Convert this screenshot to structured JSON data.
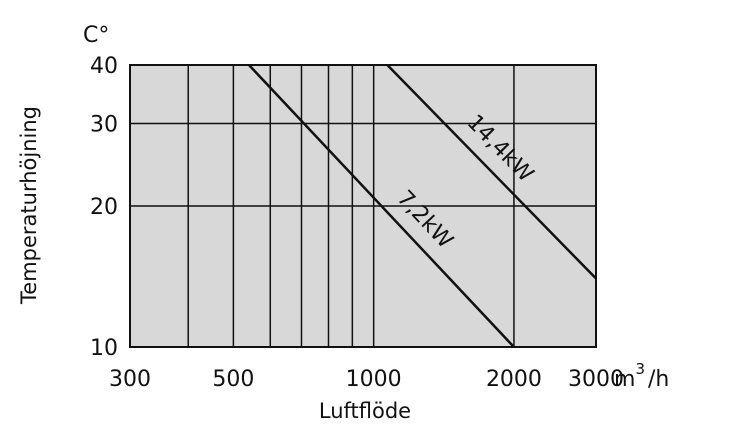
{
  "chart_data": {
    "type": "line",
    "y_unit": "C°",
    "xlabel": "Luftflöde",
    "ylabel": "Temperaturhöjning",
    "x_unit_base": "m",
    "x_unit_sup": "3",
    "x_unit_tail": "/h",
    "x_scale": "log",
    "y_scale": "log",
    "xlim": [
      300,
      3000
    ],
    "ylim": [
      10,
      40
    ],
    "x_gridlines": [
      400,
      500,
      600,
      700,
      800,
      900,
      1000,
      2000
    ],
    "y_gridlines": [
      20,
      30
    ],
    "x_ticks": [
      {
        "value": 300,
        "label": "300"
      },
      {
        "value": 500,
        "label": "500"
      },
      {
        "value": 1000,
        "label": "1000"
      },
      {
        "value": 2000,
        "label": "2000"
      },
      {
        "value": 3000,
        "label": "3000"
      }
    ],
    "y_ticks": [
      {
        "value": 10,
        "label": "10"
      },
      {
        "value": 20,
        "label": "20"
      },
      {
        "value": 30,
        "label": "30"
      },
      {
        "value": 40,
        "label": "40"
      }
    ],
    "grid": true,
    "plot_background": "#d8d8d8",
    "line_color": "#111111",
    "series": [
      {
        "name": "7,2kW",
        "x": [
          540,
          2000
        ],
        "y": [
          40,
          10
        ]
      },
      {
        "name": "14,4kW",
        "x": [
          1070,
          3000
        ],
        "y": [
          40,
          14
        ]
      }
    ]
  }
}
